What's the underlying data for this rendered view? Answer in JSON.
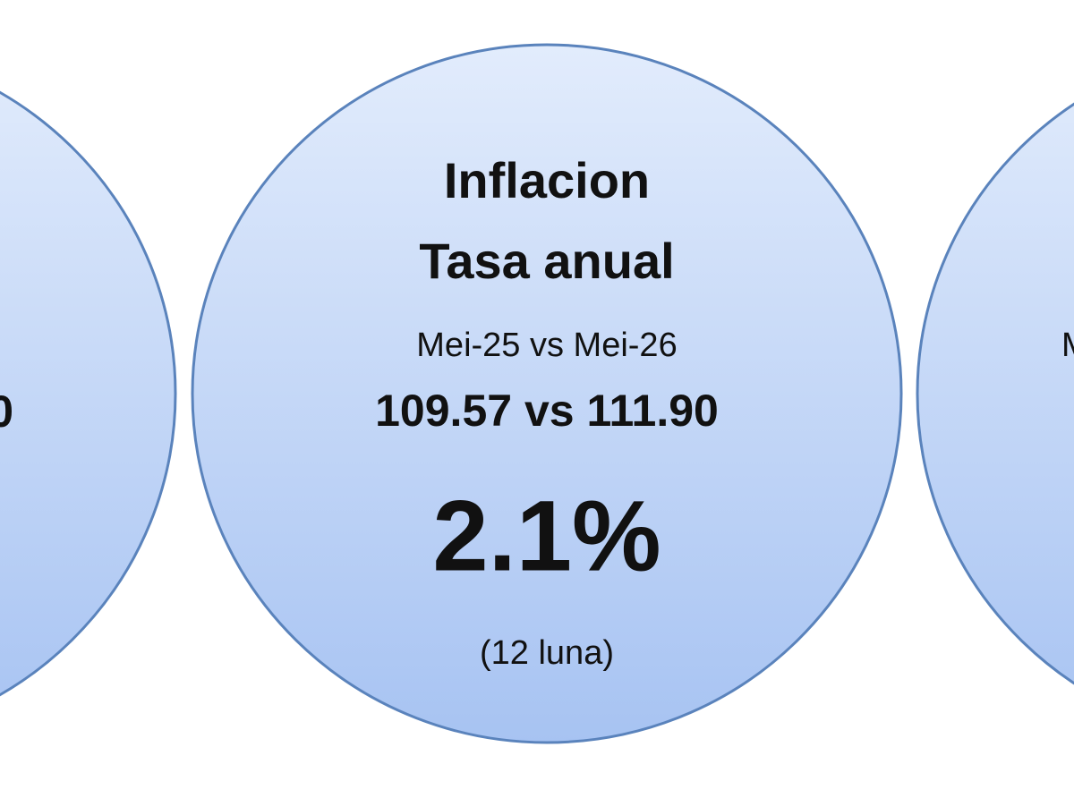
{
  "left_card": {
    "text_fragment": "0"
  },
  "center_card": {
    "title_line_1": "Inflacion",
    "title_line_2": "Tasa anual",
    "period": "Mei-25 vs Mei-26",
    "index_values": "109.57 vs 111.90",
    "rate": "2.1%",
    "note": "(12 luna)"
  },
  "right_card": {
    "text_fragment": "M"
  }
}
